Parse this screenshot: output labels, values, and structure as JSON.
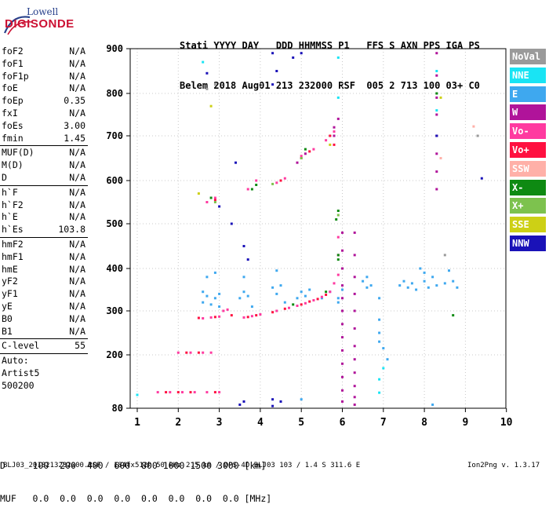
{
  "logo": {
    "top": "Lowell",
    "main": "DIGISONDE"
  },
  "header": {
    "line1": "Stati YYYY DAY   DDD HHMMSS P1   FFS S AXN PPS IGA PS",
    "line2": "Belem 2018 Aug01 213 232000 RSF  005 2 713 100 03+ C0"
  },
  "params_group1": [
    {
      "name": "foF2",
      "value": "N/A"
    },
    {
      "name": "foF1",
      "value": "N/A"
    },
    {
      "name": "foF1p",
      "value": "N/A"
    },
    {
      "name": "foE",
      "value": "N/A"
    },
    {
      "name": "foEp",
      "value": "0.35"
    },
    {
      "name": "fxI",
      "value": "N/A"
    },
    {
      "name": "foEs",
      "value": "3.00"
    },
    {
      "name": "fmin",
      "value": "1.45"
    }
  ],
  "params_group2": [
    {
      "name": "MUF(D)",
      "value": "N/A"
    },
    {
      "name": "M(D)",
      "value": "N/A"
    },
    {
      "name": "D",
      "value": "N/A"
    }
  ],
  "params_group3": [
    {
      "name": "h`F",
      "value": "N/A"
    },
    {
      "name": "h`F2",
      "value": "N/A"
    },
    {
      "name": "h`E",
      "value": "N/A"
    },
    {
      "name": "h`Es",
      "value": "103.8"
    }
  ],
  "params_group4": [
    {
      "name": "hmF2",
      "value": "N/A"
    },
    {
      "name": "hmF1",
      "value": "N/A"
    },
    {
      "name": "hmE",
      "value": "N/A"
    },
    {
      "name": "yF2",
      "value": "N/A"
    },
    {
      "name": "yF1",
      "value": "N/A"
    },
    {
      "name": "yE",
      "value": "N/A"
    },
    {
      "name": "B0",
      "value": "N/A"
    },
    {
      "name": "B1",
      "value": "N/A"
    }
  ],
  "params_group5": [
    {
      "name": "C-level",
      "value": "55"
    }
  ],
  "autoscale": {
    "line1": "Auto:",
    "line2": "Artist5",
    "line3": "500200"
  },
  "legend": [
    {
      "label": "NoVal",
      "color": "#9a9a9a"
    },
    {
      "label": "NNE",
      "color": "#19e4f4"
    },
    {
      "label": "E",
      "color": "#3ea8ef"
    },
    {
      "label": "W",
      "color": "#b0139a"
    },
    {
      "label": "Vo-",
      "color": "#ff3aa0"
    },
    {
      "label": "Vo+",
      "color": "#ff1040"
    },
    {
      "label": "SSW",
      "color": "#ffb0a8"
    },
    {
      "label": "X-",
      "color": "#0e8a12"
    },
    {
      "label": "X+",
      "color": "#7dc24e"
    },
    {
      "label": "SSE",
      "color": "#cdd015"
    },
    {
      "label": "NNW",
      "color": "#1a12b8"
    }
  ],
  "footer": {
    "d_line": "D     100  200  400  600  800 1000 1500 3000 [km]",
    "muf_line": "MUF   0.0  0.0  0.0  0.0  0.0  0.0  0.0  0.0 [MHz]",
    "file_line": "BLJ03_2018213232000.RSF / 184fx512h 50 kHz 2.5 km / DPS-4D BLJ03 103 / 1.4 S 311.6 E",
    "version": "Ion2Png v. 1.3.17"
  },
  "chart_data": {
    "type": "scatter",
    "xlabel": "",
    "ylabel": "",
    "xlim": [
      0.7,
      10
    ],
    "ylim": [
      80,
      900
    ],
    "x_ticks": [
      "1",
      "2",
      "3",
      "4",
      "5",
      "6",
      "7",
      "8",
      "9",
      "10"
    ],
    "y_ticks": [
      "80",
      "200",
      "300",
      "400",
      "500",
      "600",
      "700",
      "800",
      "900"
    ],
    "y_scale": "log",
    "grid": true,
    "series": [
      {
        "name": "NNE",
        "color": "#19e4f4",
        "points": [
          [
            1.0,
            110
          ],
          [
            2.6,
            870
          ],
          [
            5.9,
            790
          ],
          [
            5.9,
            880
          ],
          [
            8.3,
            850
          ],
          [
            8.3,
            760
          ],
          [
            6.9,
            145
          ],
          [
            6.9,
            115
          ],
          [
            7.0,
            170
          ]
        ]
      },
      {
        "name": "E",
        "color": "#3ea8ef",
        "points": [
          [
            2.6,
            320
          ],
          [
            2.6,
            345
          ],
          [
            2.7,
            335
          ],
          [
            2.8,
            315
          ],
          [
            2.9,
            330
          ],
          [
            3.0,
            340
          ],
          [
            2.7,
            380
          ],
          [
            2.9,
            390
          ],
          [
            3.0,
            310
          ],
          [
            3.5,
            330
          ],
          [
            3.6,
            345
          ],
          [
            3.7,
            335
          ],
          [
            3.6,
            380
          ],
          [
            3.8,
            310
          ],
          [
            4.3,
            355
          ],
          [
            4.4,
            340
          ],
          [
            4.5,
            360
          ],
          [
            4.4,
            395
          ],
          [
            4.6,
            320
          ],
          [
            4.9,
            330
          ],
          [
            5.0,
            345
          ],
          [
            5.1,
            335
          ],
          [
            5.2,
            350
          ],
          [
            5.5,
            330
          ],
          [
            5.7,
            345
          ],
          [
            5.9,
            330
          ],
          [
            6.0,
            350
          ],
          [
            5.9,
            320
          ],
          [
            6.5,
            370
          ],
          [
            6.6,
            355
          ],
          [
            6.7,
            360
          ],
          [
            6.6,
            380
          ],
          [
            6.9,
            330
          ],
          [
            6.9,
            280
          ],
          [
            6.9,
            250
          ],
          [
            6.9,
            230
          ],
          [
            7.0,
            215
          ],
          [
            7.1,
            190
          ],
          [
            7.4,
            360
          ],
          [
            7.5,
            370
          ],
          [
            7.6,
            355
          ],
          [
            7.7,
            365
          ],
          [
            7.8,
            350
          ],
          [
            8.0,
            370
          ],
          [
            8.1,
            355
          ],
          [
            8.2,
            380
          ],
          [
            8.3,
            360
          ],
          [
            8.5,
            365
          ],
          [
            8.7,
            370
          ],
          [
            8.8,
            355
          ],
          [
            8.0,
            390
          ],
          [
            8.6,
            395
          ],
          [
            7.9,
            400
          ],
          [
            5.0,
            100
          ],
          [
            8.2,
            88
          ]
        ]
      },
      {
        "name": "W",
        "color": "#b0139a",
        "points": [
          [
            6.0,
            480
          ],
          [
            6.0,
            440
          ],
          [
            6.0,
            400
          ],
          [
            6.0,
            360
          ],
          [
            6.0,
            330
          ],
          [
            6.0,
            300
          ],
          [
            6.0,
            270
          ],
          [
            6.0,
            240
          ],
          [
            6.0,
            210
          ],
          [
            6.0,
            180
          ],
          [
            6.0,
            150
          ],
          [
            6.0,
            120
          ],
          [
            6.0,
            95
          ],
          [
            6.3,
            480
          ],
          [
            6.3,
            430
          ],
          [
            6.3,
            380
          ],
          [
            6.3,
            340
          ],
          [
            6.3,
            300
          ],
          [
            6.3,
            260
          ],
          [
            6.3,
            220
          ],
          [
            6.3,
            190
          ],
          [
            6.3,
            160
          ],
          [
            6.3,
            130
          ],
          [
            6.3,
            105
          ],
          [
            6.3,
            88
          ],
          [
            8.3,
            890
          ],
          [
            8.3,
            840
          ],
          [
            8.3,
            790
          ],
          [
            8.3,
            750
          ],
          [
            8.3,
            700
          ],
          [
            8.3,
            660
          ],
          [
            8.3,
            620
          ],
          [
            8.3,
            580
          ],
          [
            5.8,
            700
          ],
          [
            5.9,
            740
          ],
          [
            5.8,
            720
          ],
          [
            5.0,
            650
          ],
          [
            5.1,
            660
          ],
          [
            4.9,
            640
          ]
        ]
      },
      {
        "name": "Vo-",
        "color": "#ff3aa0",
        "points": [
          [
            2.6,
            283
          ],
          [
            2.8,
            285
          ],
          [
            3.0,
            287
          ],
          [
            3.1,
            300
          ],
          [
            3.2,
            303
          ],
          [
            3.6,
            285
          ],
          [
            3.8,
            288
          ],
          [
            4.0,
            292
          ],
          [
            4.4,
            300
          ],
          [
            4.7,
            307
          ],
          [
            4.9,
            312
          ],
          [
            5.1,
            318
          ],
          [
            5.3,
            325
          ],
          [
            5.5,
            333
          ],
          [
            5.7,
            345
          ],
          [
            5.8,
            365
          ],
          [
            5.9,
            385
          ],
          [
            5.9,
            430
          ],
          [
            5.9,
            470
          ],
          [
            2.0,
            205
          ],
          [
            2.3,
            205
          ],
          [
            2.6,
            205
          ],
          [
            2.8,
            205
          ],
          [
            1.5,
            116
          ],
          [
            1.8,
            116
          ],
          [
            2.1,
            116
          ],
          [
            2.4,
            116
          ],
          [
            2.7,
            116
          ],
          [
            3.0,
            116
          ],
          [
            2.7,
            550
          ],
          [
            2.9,
            560
          ],
          [
            3.7,
            580
          ],
          [
            3.9,
            600
          ],
          [
            4.4,
            595
          ],
          [
            4.6,
            605
          ],
          [
            5.0,
            655
          ],
          [
            5.3,
            670
          ],
          [
            5.6,
            690
          ],
          [
            5.8,
            710
          ]
        ]
      },
      {
        "name": "Vo+",
        "color": "#ff1040",
        "points": [
          [
            2.5,
            284
          ],
          [
            2.9,
            286
          ],
          [
            3.3,
            290
          ],
          [
            3.7,
            286
          ],
          [
            3.9,
            290
          ],
          [
            4.3,
            297
          ],
          [
            4.6,
            305
          ],
          [
            5.0,
            315
          ],
          [
            5.2,
            322
          ],
          [
            5.4,
            328
          ],
          [
            5.6,
            338
          ],
          [
            1.7,
            116
          ],
          [
            2.0,
            116
          ],
          [
            2.3,
            116
          ],
          [
            2.9,
            116
          ],
          [
            2.2,
            205
          ],
          [
            2.5,
            205
          ],
          [
            2.9,
            555
          ],
          [
            4.5,
            600
          ],
          [
            5.2,
            665
          ],
          [
            5.7,
            700
          ],
          [
            5.8,
            680
          ]
        ]
      },
      {
        "name": "SSW",
        "color": "#ffb0a8",
        "points": [
          [
            9.2,
            722
          ],
          [
            8.4,
            650
          ]
        ]
      },
      {
        "name": "X-",
        "color": "#0e8a12",
        "points": [
          [
            5.9,
            530
          ],
          [
            5.85,
            510
          ],
          [
            5.9,
            430
          ],
          [
            5.9,
            420
          ],
          [
            4.8,
            315
          ],
          [
            5.6,
            345
          ],
          [
            3.9,
            590
          ],
          [
            3.8,
            580
          ],
          [
            2.8,
            560
          ],
          [
            5.1,
            670
          ],
          [
            8.7,
            290
          ],
          [
            8.3,
            800
          ]
        ]
      },
      {
        "name": "X+",
        "color": "#7dc24e",
        "points": [
          [
            5.9,
            520
          ],
          [
            5.0,
            650
          ],
          [
            2.9,
            550
          ],
          [
            4.3,
            592
          ]
        ]
      },
      {
        "name": "SSE",
        "color": "#cdd015",
        "points": [
          [
            8.4,
            790
          ],
          [
            2.8,
            770
          ],
          [
            5.7,
            680
          ],
          [
            2.5,
            570
          ]
        ]
      },
      {
        "name": "NNW",
        "color": "#1a12b8",
        "points": [
          [
            3.4,
            640
          ],
          [
            3.6,
            450
          ],
          [
            3.7,
            420
          ],
          [
            4.3,
            820
          ],
          [
            4.4,
            850
          ],
          [
            4.3,
            890
          ],
          [
            4.8,
            880
          ],
          [
            5.0,
            890
          ],
          [
            4.3,
            100
          ],
          [
            4.5,
            95
          ],
          [
            4.3,
            85
          ],
          [
            3.6,
            95
          ],
          [
            3.5,
            88
          ],
          [
            2.7,
            845
          ],
          [
            3.0,
            540
          ],
          [
            3.3,
            500
          ],
          [
            9.4,
            605
          ],
          [
            8.3,
            700
          ]
        ]
      },
      {
        "name": "NoVal",
        "color": "#9a9a9a",
        "points": [
          [
            2.7,
            810
          ],
          [
            2.9,
            820
          ],
          [
            8.5,
            430
          ],
          [
            9.3,
            700
          ]
        ]
      }
    ]
  }
}
